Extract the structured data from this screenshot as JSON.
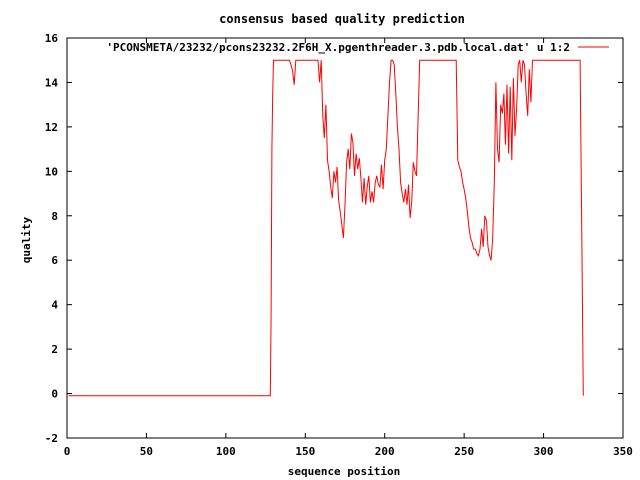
{
  "chart_data": {
    "type": "line",
    "title": "consensus based quality prediction",
    "xlabel": "sequence position",
    "ylabel": "quality",
    "xlim": [
      0,
      350
    ],
    "ylim": [
      -2,
      16
    ],
    "xticks": [
      0,
      50,
      100,
      150,
      200,
      250,
      300,
      350
    ],
    "yticks": [
      -2,
      0,
      2,
      4,
      6,
      8,
      10,
      12,
      14,
      16
    ],
    "grid": false,
    "legend_position": "top-right",
    "series": [
      {
        "name": "'PCONSMETA/23232/pcons23232.2F6H_X.pgenthreader.3.pdb.local.dat' u 1:2",
        "color": "#ff0000",
        "x": [
          1,
          128,
          128.5,
          129,
          129.5,
          130,
          131,
          135,
          140,
          141,
          142,
          143,
          144,
          145,
          150,
          155,
          158,
          159,
          160,
          161,
          162,
          163,
          164,
          165,
          166,
          167,
          168,
          169,
          170,
          171,
          172,
          173,
          174,
          175,
          176,
          177,
          178,
          179,
          180,
          181,
          182,
          183,
          184,
          185,
          186,
          187,
          188,
          189,
          190,
          191,
          192,
          193,
          194,
          195,
          196,
          197,
          198,
          199,
          200,
          201,
          202,
          203,
          204,
          205,
          206,
          207,
          208,
          209,
          210,
          211,
          212,
          213,
          214,
          215,
          216,
          217,
          218,
          219,
          220,
          222,
          225,
          235,
          245,
          246,
          247,
          248,
          249,
          250,
          251,
          252,
          253,
          254,
          255,
          256,
          257,
          258,
          259,
          260,
          261,
          262,
          263,
          264,
          265,
          266,
          267,
          268,
          269,
          270,
          271,
          272,
          273,
          274,
          275,
          276,
          277,
          278,
          279,
          280,
          281,
          282,
          283,
          284,
          285,
          286,
          287,
          288,
          289,
          290,
          291,
          292,
          293,
          295,
          300,
          310,
          320,
          323,
          324,
          325
        ],
        "y": [
          -0.1,
          -0.1,
          3.5,
          11,
          13.5,
          15,
          15,
          15,
          15,
          14.8,
          14.5,
          13.9,
          15,
          15,
          15,
          15,
          15,
          14,
          15,
          12.5,
          11.5,
          13,
          10.5,
          10,
          9.3,
          8.8,
          10,
          9.5,
          10.2,
          8.7,
          8.2,
          7.6,
          7,
          8.5,
          10.4,
          11,
          10.1,
          11.7,
          11.3,
          9.8,
          10.8,
          10.1,
          10.6,
          9.7,
          8.6,
          9.7,
          8.5,
          9.3,
          9.8,
          8.6,
          9.1,
          8.6,
          9.5,
          9.8,
          9.4,
          9.3,
          10.3,
          9.2,
          10.5,
          11,
          12.5,
          14,
          15,
          15,
          14.8,
          13.5,
          12,
          11,
          9.5,
          9,
          8.6,
          9.2,
          8.5,
          9.4,
          7.9,
          8.6,
          10.4,
          10,
          9.8,
          15,
          15,
          15,
          15,
          10.5,
          10.2,
          10,
          9.5,
          9.2,
          8.8,
          8.2,
          7.5,
          7,
          6.8,
          6.5,
          6.5,
          6.3,
          6.2,
          6.5,
          7.4,
          6.6,
          8,
          7.8,
          6.6,
          6.2,
          6,
          7,
          9.5,
          14,
          11,
          10.4,
          13,
          12.6,
          13.5,
          11.2,
          13.9,
          10.8,
          13.8,
          10.5,
          14.2,
          11.6,
          12.8,
          14.8,
          15,
          14,
          15,
          14.8,
          13.5,
          12.5,
          14.6,
          13.1,
          15,
          15,
          15,
          15,
          15,
          15,
          7.6,
          -0.1
        ]
      }
    ]
  }
}
